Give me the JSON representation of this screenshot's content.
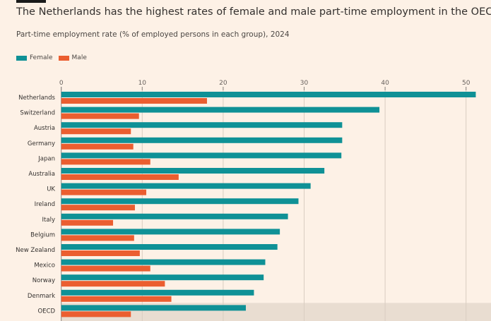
{
  "chart_data": {
    "type": "bar",
    "orientation": "horizontal",
    "title": "The Netherlands has the highest rates of female and male part-time employment in the OECD",
    "subtitle": "Part-time employment rate (% of employed persons in each group), 2024",
    "categories": [
      "Netherlands",
      "Switzerland",
      "Austria",
      "Germany",
      "Japan",
      "Australia",
      "UK",
      "Ireland",
      "Italy",
      "Belgium",
      "New Zealand",
      "Mexico",
      "Norway",
      "Denmark",
      "OECD"
    ],
    "series": [
      {
        "name": "Female",
        "color": "#0f9196",
        "values": [
          51.2,
          39.3,
          34.7,
          34.7,
          34.6,
          32.5,
          30.8,
          29.3,
          28.0,
          27.0,
          26.7,
          25.2,
          25.0,
          23.8,
          22.8
        ]
      },
      {
        "name": "Male",
        "color": "#eb5e30",
        "values": [
          18.0,
          9.6,
          8.6,
          8.9,
          11.0,
          14.5,
          10.5,
          9.1,
          6.4,
          9.0,
          9.7,
          11.0,
          12.8,
          13.6,
          8.6
        ]
      }
    ],
    "xlim": [
      0,
      52.5
    ],
    "xticks": [
      "0",
      "10",
      "20",
      "30",
      "40",
      "50"
    ],
    "grid": true,
    "legend_placement": "top-left",
    "highlighted_category": "OECD",
    "highlight_color": "#e9ddd1"
  }
}
